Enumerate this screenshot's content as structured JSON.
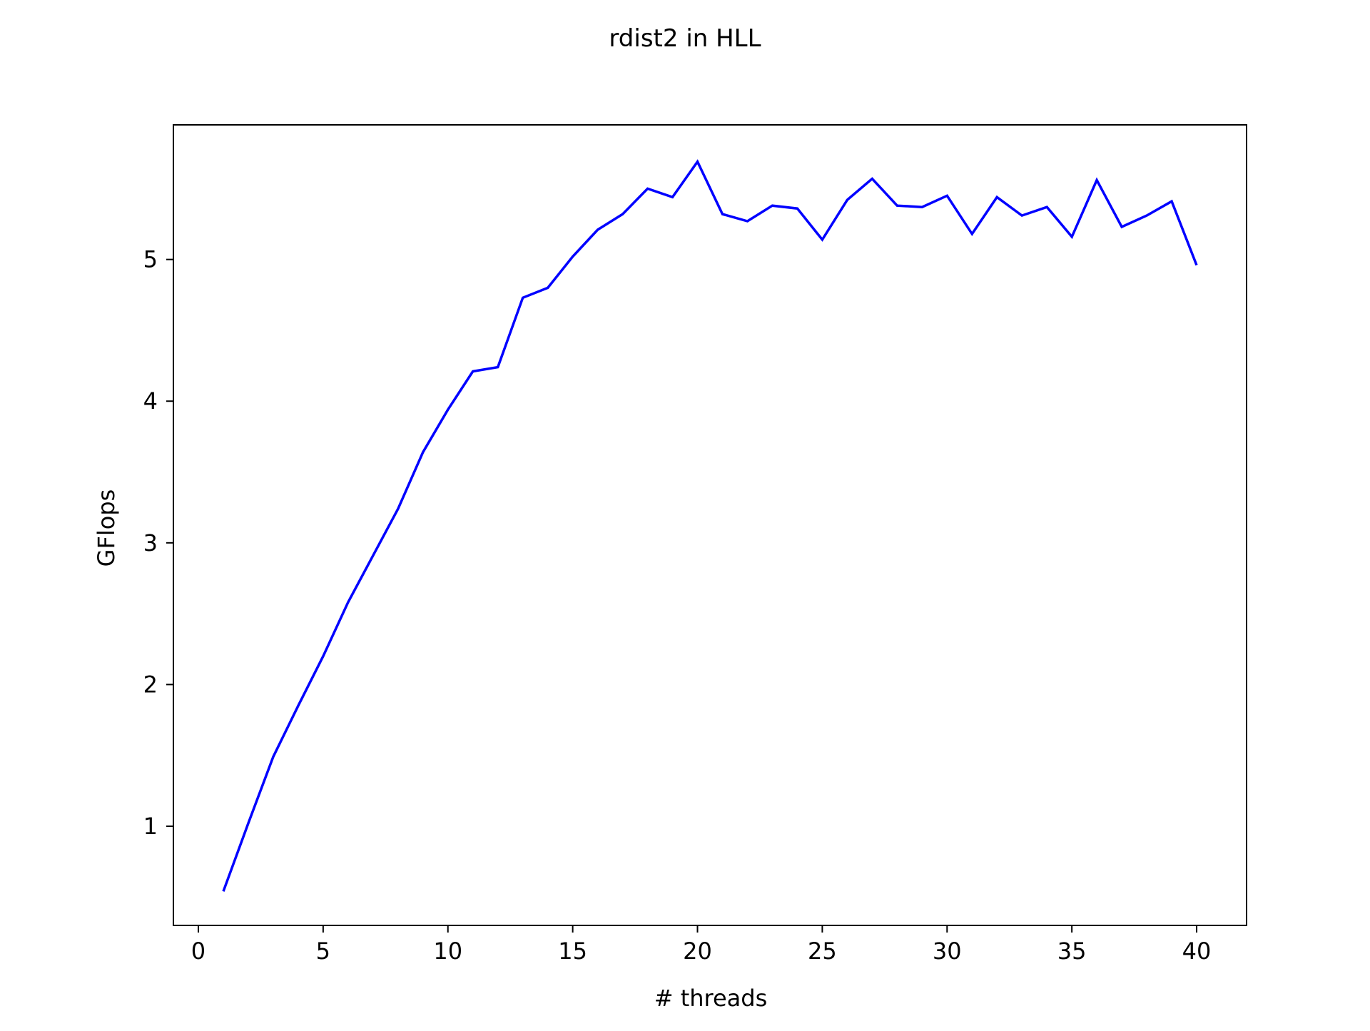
{
  "chart_data": {
    "type": "line",
    "title": "rdist2 in HLL",
    "xlabel": "# threads",
    "ylabel": "GFlops",
    "xlim": [
      -1,
      42
    ],
    "ylim": [
      0.3,
      5.95
    ],
    "xticks": [
      0,
      5,
      10,
      15,
      20,
      25,
      30,
      35,
      40
    ],
    "yticks": [
      1,
      2,
      3,
      4,
      5
    ],
    "xtick_labels": [
      "0",
      "5",
      "10",
      "15",
      "20",
      "25",
      "30",
      "35",
      "40"
    ],
    "ytick_labels": [
      "1",
      "2",
      "3",
      "4",
      "5"
    ],
    "grid": false,
    "legend": "none",
    "series": [
      {
        "color": "#0000ff",
        "x": [
          1,
          2,
          3,
          4,
          5,
          6,
          7,
          8,
          9,
          10,
          11,
          12,
          13,
          14,
          15,
          16,
          17,
          18,
          19,
          20,
          21,
          22,
          23,
          24,
          25,
          26,
          27,
          28,
          29,
          30,
          31,
          32,
          33,
          34,
          35,
          36,
          37,
          38,
          39,
          40
        ],
        "values": [
          0.54,
          1.02,
          1.49,
          1.85,
          2.2,
          2.58,
          2.91,
          3.24,
          3.64,
          3.94,
          4.21,
          4.24,
          4.73,
          4.8,
          5.02,
          5.21,
          5.32,
          5.5,
          5.44,
          5.69,
          5.32,
          5.27,
          5.38,
          5.36,
          5.14,
          5.42,
          5.57,
          5.38,
          5.37,
          5.45,
          5.18,
          5.44,
          5.31,
          5.37,
          5.16,
          5.56,
          5.23,
          5.31,
          5.41,
          4.96
        ]
      }
    ]
  }
}
